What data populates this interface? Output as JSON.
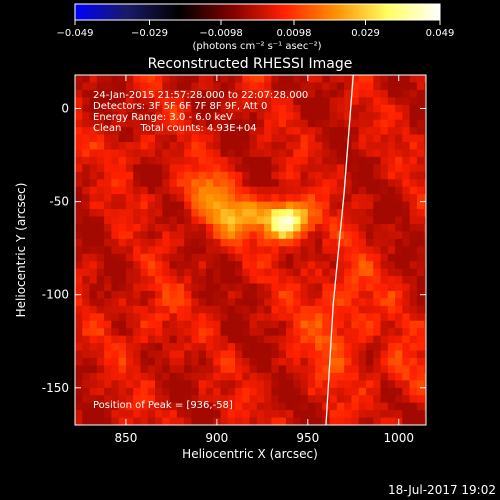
{
  "chart_data": {
    "type": "heatmap",
    "title": "Reconstructed RHESSI Image",
    "xlabel": "Heliocentric X (arcsec)",
    "ylabel": "Heliocentric Y (arcsec)",
    "xlim": [
      822,
      1015
    ],
    "ylim": [
      -170,
      18
    ],
    "x_ticks": [
      850,
      900,
      950,
      1000
    ],
    "y_ticks": [
      0,
      -50,
      -100,
      -150
    ],
    "colorbar": {
      "min": -0.049,
      "max": 0.049,
      "ticks": [
        -0.049,
        -0.029,
        -0.0098,
        0.0098,
        0.029,
        0.049
      ],
      "tick_labels": [
        "−0.049",
        "−0.029",
        "−0.0098",
        "0.0098",
        "0.029",
        "0.049"
      ],
      "units_label": "(photons cm⁻² s⁻¹ asec⁻²)",
      "colormap": [
        "#0000ff",
        "#1a1a66",
        "#000000",
        "#800000",
        "#ff2000",
        "#ff9000",
        "#ffff60",
        "#ffffff"
      ]
    },
    "info": [
      "24-Jan-2015 21:57:28.000 to 22:07:28.000",
      "Detectors: 3F 5F 6F 7F 8F 9F, Att 0",
      "Energy Range: 3.0 - 6.0 keV",
      "Clean      Total counts: 4.93E+04"
    ],
    "peak_label": "Position of Peak = [936,-58]",
    "peak": {
      "x": 936,
      "y": -58,
      "value": 0.049
    },
    "limb_arc": [
      [
        975,
        18
      ],
      [
        970,
        -45
      ],
      [
        964,
        -105
      ],
      [
        960,
        -170
      ]
    ],
    "sources": [
      {
        "x": 936,
        "y": -58,
        "sx": 9,
        "sy": 7,
        "amp": 0.049
      },
      {
        "x": 905,
        "y": -55,
        "sx": 12,
        "sy": 9,
        "amp": 0.022
      },
      {
        "x": 888,
        "y": -40,
        "sx": 10,
        "sy": 8,
        "amp": 0.012
      },
      {
        "x": 965,
        "y": -110,
        "sx": 14,
        "sy": 22,
        "amp": 0.012
      },
      {
        "x": 1000,
        "y": -140,
        "sx": 10,
        "sy": 10,
        "amp": 0.009
      },
      {
        "x": 860,
        "y": -110,
        "sx": 10,
        "sy": 14,
        "amp": 0.008
      },
      {
        "x": 850,
        "y": -20,
        "sx": 8,
        "sy": 8,
        "amp": 0.007
      }
    ]
  },
  "footer": {
    "date": "18-Jul-2017 19:02"
  }
}
